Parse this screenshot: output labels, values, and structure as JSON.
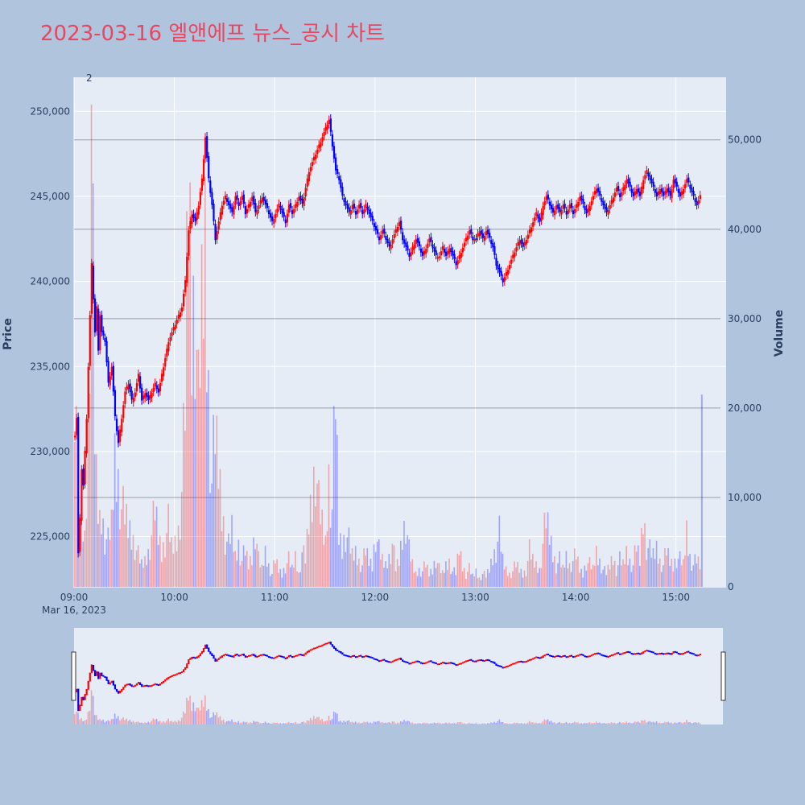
{
  "page": {
    "title": "2023-03-16 엘앤에프 뉴스_공시 차트",
    "title_color": "#e8475f",
    "background": "#b0c4de",
    "plot_background": "#e5ecf6"
  },
  "chart_data": {
    "type": "candlestick",
    "title": "2023-03-16 엘앤에프 뉴스_공시 차트",
    "ylabel": "Price",
    "y2label": "Volume",
    "price_range": [
      222000,
      252000
    ],
    "volume_range": [
      0,
      57000
    ],
    "time_range": [
      "09:00",
      "15:30"
    ],
    "price_ticks": [
      "225,000",
      "230,000",
      "235,000",
      "240,000",
      "245,000",
      "250,000"
    ],
    "price_tick_values": [
      225000,
      230000,
      235000,
      240000,
      245000,
      250000
    ],
    "volume_ticks": [
      "0",
      "10,000",
      "20,000",
      "30,000",
      "40,000",
      "50,000"
    ],
    "volume_tick_values": [
      0,
      10000,
      20000,
      30000,
      40000,
      50000
    ],
    "time_ticks": [
      "09:00",
      "10:00",
      "11:00",
      "12:00",
      "13:00",
      "14:00",
      "15:00"
    ],
    "time_tick_minutes": [
      0,
      60,
      120,
      180,
      240,
      300,
      360
    ],
    "date_label": "Mar 16, 2023",
    "annotation": "2",
    "annotation_minute": 10,
    "up_color": "#ff0000",
    "down_color": "#0000ff",
    "price_points": [
      [
        0,
        231000
      ],
      [
        1,
        232000
      ],
      [
        2,
        224000
      ],
      [
        3,
        226000
      ],
      [
        4,
        229000
      ],
      [
        5,
        228000
      ],
      [
        6,
        230000
      ],
      [
        7,
        232000
      ],
      [
        8,
        235000
      ],
      [
        9,
        238000
      ],
      [
        10,
        241000
      ],
      [
        11,
        239000
      ],
      [
        12,
        237000
      ],
      [
        13,
        238500
      ],
      [
        14,
        236000
      ],
      [
        15,
        238000
      ],
      [
        16,
        237000
      ],
      [
        18,
        236500
      ],
      [
        20,
        234000
      ],
      [
        22,
        235000
      ],
      [
        24,
        232000
      ],
      [
        26,
        230500
      ],
      [
        28,
        232000
      ],
      [
        30,
        233500
      ],
      [
        32,
        234000
      ],
      [
        34,
        233000
      ],
      [
        36,
        233500
      ],
      [
        38,
        234500
      ],
      [
        40,
        233000
      ],
      [
        42,
        233500
      ],
      [
        44,
        233000
      ],
      [
        46,
        233500
      ],
      [
        48,
        234000
      ],
      [
        50,
        233500
      ],
      [
        52,
        234500
      ],
      [
        54,
        235500
      ],
      [
        56,
        236500
      ],
      [
        58,
        237000
      ],
      [
        60,
        237500
      ],
      [
        62,
        238000
      ],
      [
        64,
        238500
      ],
      [
        66,
        240000
      ],
      [
        68,
        243000
      ],
      [
        70,
        244000
      ],
      [
        72,
        243500
      ],
      [
        74,
        244500
      ],
      [
        76,
        246000
      ],
      [
        78,
        248500
      ],
      [
        80,
        246000
      ],
      [
        82,
        244500
      ],
      [
        84,
        242500
      ],
      [
        86,
        243500
      ],
      [
        88,
        244500
      ],
      [
        90,
        245000
      ],
      [
        92,
        244500
      ],
      [
        94,
        244000
      ],
      [
        96,
        245000
      ],
      [
        98,
        244500
      ],
      [
        100,
        245000
      ],
      [
        102,
        244000
      ],
      [
        104,
        244500
      ],
      [
        106,
        245000
      ],
      [
        108,
        244000
      ],
      [
        110,
        244500
      ],
      [
        112,
        245000
      ],
      [
        114,
        244500
      ],
      [
        116,
        244000
      ],
      [
        118,
        243500
      ],
      [
        120,
        244000
      ],
      [
        122,
        244500
      ],
      [
        124,
        244000
      ],
      [
        126,
        243500
      ],
      [
        128,
        244500
      ],
      [
        130,
        244000
      ],
      [
        132,
        244500
      ],
      [
        134,
        245000
      ],
      [
        136,
        244500
      ],
      [
        138,
        245500
      ],
      [
        140,
        246500
      ],
      [
        142,
        247000
      ],
      [
        144,
        247500
      ],
      [
        146,
        248000
      ],
      [
        148,
        248500
      ],
      [
        150,
        249000
      ],
      [
        152,
        249500
      ],
      [
        154,
        248000
      ],
      [
        156,
        246500
      ],
      [
        158,
        246000
      ],
      [
        160,
        245000
      ],
      [
        162,
        244500
      ],
      [
        164,
        244000
      ],
      [
        166,
        244500
      ],
      [
        168,
        244000
      ],
      [
        170,
        244500
      ],
      [
        172,
        244000
      ],
      [
        174,
        244500
      ],
      [
        176,
        244000
      ],
      [
        178,
        243500
      ],
      [
        180,
        243000
      ],
      [
        182,
        242500
      ],
      [
        184,
        243000
      ],
      [
        186,
        242500
      ],
      [
        188,
        242000
      ],
      [
        190,
        242500
      ],
      [
        192,
        243000
      ],
      [
        194,
        243500
      ],
      [
        196,
        242500
      ],
      [
        198,
        242000
      ],
      [
        200,
        241500
      ],
      [
        202,
        242000
      ],
      [
        204,
        242500
      ],
      [
        206,
        242000
      ],
      [
        208,
        241500
      ],
      [
        210,
        242000
      ],
      [
        212,
        242500
      ],
      [
        214,
        242000
      ],
      [
        216,
        241500
      ],
      [
        218,
        241500
      ],
      [
        220,
        242000
      ],
      [
        222,
        241500
      ],
      [
        224,
        242000
      ],
      [
        226,
        241500
      ],
      [
        228,
        241000
      ],
      [
        230,
        241500
      ],
      [
        232,
        242000
      ],
      [
        234,
        242500
      ],
      [
        236,
        243000
      ],
      [
        238,
        242500
      ],
      [
        240,
        242500
      ],
      [
        242,
        243000
      ],
      [
        244,
        242500
      ],
      [
        246,
        243000
      ],
      [
        248,
        242500
      ],
      [
        250,
        242000
      ],
      [
        252,
        241000
      ],
      [
        254,
        240500
      ],
      [
        256,
        240000
      ],
      [
        258,
        240500
      ],
      [
        260,
        241000
      ],
      [
        262,
        241500
      ],
      [
        264,
        242000
      ],
      [
        266,
        242500
      ],
      [
        268,
        242000
      ],
      [
        270,
        242500
      ],
      [
        272,
        243000
      ],
      [
        274,
        243500
      ],
      [
        276,
        244000
      ],
      [
        278,
        243500
      ],
      [
        280,
        244500
      ],
      [
        282,
        245000
      ],
      [
        284,
        244500
      ],
      [
        286,
        244000
      ],
      [
        288,
        244500
      ],
      [
        290,
        244000
      ],
      [
        292,
        244500
      ],
      [
        294,
        244000
      ],
      [
        296,
        244500
      ],
      [
        298,
        244000
      ],
      [
        300,
        244500
      ],
      [
        302,
        245000
      ],
      [
        304,
        244500
      ],
      [
        306,
        244000
      ],
      [
        308,
        244500
      ],
      [
        310,
        245000
      ],
      [
        312,
        245500
      ],
      [
        314,
        245000
      ],
      [
        316,
        244500
      ],
      [
        318,
        244000
      ],
      [
        320,
        244500
      ],
      [
        322,
        245000
      ],
      [
        324,
        245500
      ],
      [
        326,
        245000
      ],
      [
        328,
        245500
      ],
      [
        330,
        246000
      ],
      [
        332,
        245500
      ],
      [
        334,
        245000
      ],
      [
        336,
        245500
      ],
      [
        338,
        245000
      ],
      [
        340,
        246000
      ],
      [
        342,
        246500
      ],
      [
        344,
        246000
      ],
      [
        346,
        245500
      ],
      [
        348,
        245000
      ],
      [
        350,
        245500
      ],
      [
        352,
        245000
      ],
      [
        354,
        245500
      ],
      [
        356,
        245000
      ],
      [
        358,
        246000
      ],
      [
        360,
        245500
      ],
      [
        362,
        245000
      ],
      [
        364,
        245500
      ],
      [
        366,
        246000
      ],
      [
        368,
        245500
      ],
      [
        370,
        245000
      ],
      [
        372,
        244500
      ],
      [
        374,
        245000
      ]
    ],
    "volume_points": [
      [
        0,
        27000
      ],
      [
        1,
        21000
      ],
      [
        2,
        14000
      ],
      [
        3,
        9000
      ],
      [
        4,
        8000
      ],
      [
        5,
        6500
      ],
      [
        6,
        5500
      ],
      [
        7,
        11000
      ],
      [
        8,
        19000
      ],
      [
        9,
        36000
      ],
      [
        10,
        56000
      ],
      [
        11,
        34000
      ],
      [
        12,
        17000
      ],
      [
        13,
        12000
      ],
      [
        14,
        9000
      ],
      [
        15,
        7500
      ],
      [
        16,
        8500
      ],
      [
        18,
        6000
      ],
      [
        20,
        5000
      ],
      [
        22,
        7000
      ],
      [
        24,
        15000
      ],
      [
        26,
        12500
      ],
      [
        28,
        9000
      ],
      [
        30,
        8000
      ],
      [
        32,
        7000
      ],
      [
        34,
        6000
      ],
      [
        36,
        5000
      ],
      [
        38,
        3500
      ],
      [
        40,
        2500
      ],
      [
        42,
        3000
      ],
      [
        44,
        4000
      ],
      [
        46,
        6000
      ],
      [
        48,
        8500
      ],
      [
        50,
        6000
      ],
      [
        52,
        4000
      ],
      [
        54,
        5500
      ],
      [
        56,
        7000
      ],
      [
        58,
        4500
      ],
      [
        60,
        5000
      ],
      [
        62,
        6500
      ],
      [
        64,
        11000
      ],
      [
        66,
        20000
      ],
      [
        68,
        48000
      ],
      [
        70,
        31000
      ],
      [
        72,
        35000
      ],
      [
        74,
        20000
      ],
      [
        76,
        31000
      ],
      [
        78,
        40000
      ],
      [
        80,
        23000
      ],
      [
        82,
        12000
      ],
      [
        84,
        17000
      ],
      [
        86,
        14000
      ],
      [
        88,
        9000
      ],
      [
        90,
        6000
      ],
      [
        92,
        4500
      ],
      [
        94,
        6500
      ],
      [
        96,
        3500
      ],
      [
        98,
        5000
      ],
      [
        100,
        3000
      ],
      [
        102,
        4000
      ],
      [
        104,
        2500
      ],
      [
        106,
        3500
      ],
      [
        108,
        7000
      ],
      [
        110,
        3000
      ],
      [
        112,
        2000
      ],
      [
        114,
        4000
      ],
      [
        116,
        2500
      ],
      [
        118,
        1500
      ],
      [
        120,
        3000
      ],
      [
        122,
        2000
      ],
      [
        124,
        1500
      ],
      [
        126,
        2500
      ],
      [
        128,
        3000
      ],
      [
        130,
        2000
      ],
      [
        132,
        3500
      ],
      [
        134,
        1500
      ],
      [
        136,
        4000
      ],
      [
        138,
        3000
      ],
      [
        140,
        7500
      ],
      [
        142,
        10500
      ],
      [
        144,
        15000
      ],
      [
        146,
        9000
      ],
      [
        148,
        7000
      ],
      [
        150,
        5000
      ],
      [
        152,
        13000
      ],
      [
        154,
        9000
      ],
      [
        156,
        21500
      ],
      [
        158,
        6000
      ],
      [
        160,
        4500
      ],
      [
        162,
        6500
      ],
      [
        164,
        5000
      ],
      [
        166,
        3500
      ],
      [
        168,
        4000
      ],
      [
        170,
        3000
      ],
      [
        172,
        2500
      ],
      [
        174,
        4000
      ],
      [
        176,
        3000
      ],
      [
        178,
        2500
      ],
      [
        180,
        6500
      ],
      [
        182,
        4000
      ],
      [
        184,
        3000
      ],
      [
        186,
        2500
      ],
      [
        188,
        3500
      ],
      [
        190,
        5000
      ],
      [
        192,
        2000
      ],
      [
        194,
        3000
      ],
      [
        196,
        6000
      ],
      [
        198,
        8000
      ],
      [
        200,
        4000
      ],
      [
        202,
        2500
      ],
      [
        204,
        1500
      ],
      [
        206,
        2000
      ],
      [
        208,
        1800
      ],
      [
        210,
        2500
      ],
      [
        212,
        1500
      ],
      [
        214,
        2000
      ],
      [
        216,
        3500
      ],
      [
        218,
        2000
      ],
      [
        220,
        1500
      ],
      [
        222,
        2500
      ],
      [
        224,
        3000
      ],
      [
        226,
        1800
      ],
      [
        228,
        1500
      ],
      [
        230,
        4500
      ],
      [
        232,
        2500
      ],
      [
        234,
        1500
      ],
      [
        236,
        2000
      ],
      [
        238,
        1200
      ],
      [
        240,
        1800
      ],
      [
        242,
        1000
      ],
      [
        244,
        1500
      ],
      [
        246,
        1200
      ],
      [
        248,
        2000
      ],
      [
        250,
        3500
      ],
      [
        252,
        4500
      ],
      [
        254,
        6000
      ],
      [
        256,
        3000
      ],
      [
        258,
        2000
      ],
      [
        260,
        1500
      ],
      [
        262,
        1800
      ],
      [
        264,
        2500
      ],
      [
        266,
        2000
      ],
      [
        268,
        1500
      ],
      [
        270,
        2000
      ],
      [
        272,
        4000
      ],
      [
        274,
        3000
      ],
      [
        276,
        2500
      ],
      [
        278,
        2000
      ],
      [
        280,
        5000
      ],
      [
        282,
        7500
      ],
      [
        284,
        6000
      ],
      [
        286,
        4000
      ],
      [
        288,
        2500
      ],
      [
        290,
        3000
      ],
      [
        292,
        2000
      ],
      [
        294,
        3500
      ],
      [
        296,
        2500
      ],
      [
        298,
        3000
      ],
      [
        300,
        3500
      ],
      [
        302,
        2000
      ],
      [
        304,
        1500
      ],
      [
        306,
        3000
      ],
      [
        308,
        2500
      ],
      [
        310,
        2000
      ],
      [
        312,
        4000
      ],
      [
        314,
        3000
      ],
      [
        316,
        2000
      ],
      [
        318,
        1500
      ],
      [
        320,
        2500
      ],
      [
        322,
        3500
      ],
      [
        324,
        2000
      ],
      [
        326,
        3000
      ],
      [
        328,
        2500
      ],
      [
        330,
        4000
      ],
      [
        332,
        3000
      ],
      [
        334,
        2500
      ],
      [
        336,
        4500
      ],
      [
        338,
        3000
      ],
      [
        340,
        8500
      ],
      [
        342,
        5000
      ],
      [
        344,
        4000
      ],
      [
        346,
        3500
      ],
      [
        348,
        4500
      ],
      [
        350,
        3000
      ],
      [
        352,
        2500
      ],
      [
        354,
        4000
      ],
      [
        356,
        3000
      ],
      [
        358,
        2500
      ],
      [
        360,
        3500
      ],
      [
        362,
        3000
      ],
      [
        364,
        2500
      ],
      [
        366,
        6500
      ],
      [
        368,
        3500
      ],
      [
        370,
        2500
      ],
      [
        372,
        3000
      ],
      [
        374,
        2500
      ],
      [
        375,
        21500
      ]
    ]
  }
}
